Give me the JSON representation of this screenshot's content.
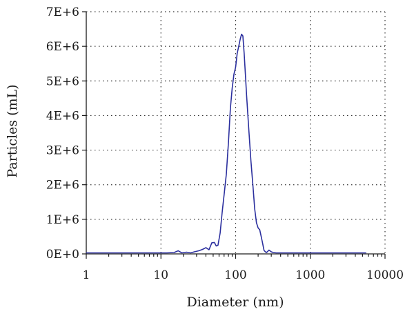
{
  "chart_data": {
    "type": "line",
    "xlabel": "Diameter (nm)",
    "ylabel": "Particles (mL)",
    "x_scale": "log",
    "xlim": [
      1,
      10000
    ],
    "ylim": [
      0,
      7000000
    ],
    "x_ticks": [
      1,
      10,
      100,
      1000,
      10000
    ],
    "x_tick_labels": [
      "1",
      "10",
      "100",
      "1000",
      "10000"
    ],
    "y_ticks": [
      0,
      1000000,
      2000000,
      3000000,
      4000000,
      5000000,
      6000000,
      7000000
    ],
    "y_tick_labels": [
      "0E+0",
      "1E+6",
      "2E+6",
      "3E+6",
      "4E+6",
      "5E+6",
      "6E+6",
      "7E+6"
    ],
    "grid": true,
    "line_color": "#2b2f9e",
    "series": [
      {
        "x": [
          1,
          2,
          3,
          5,
          8,
          10,
          12,
          15,
          17,
          19,
          22,
          25,
          28,
          32,
          36,
          40,
          44,
          48,
          52,
          55,
          58,
          62,
          66,
          70,
          75,
          80,
          85,
          90,
          95,
          100,
          105,
          110,
          115,
          120,
          125,
          130,
          135,
          140,
          150,
          160,
          170,
          180,
          190,
          200,
          210,
          220,
          230,
          240,
          250,
          260,
          280,
          300,
          320,
          350,
          400,
          500,
          700,
          1000,
          2000,
          3000,
          5600
        ],
        "y": [
          30000,
          30000,
          30000,
          30000,
          30000,
          30000,
          30000,
          40000,
          90000,
          30000,
          50000,
          30000,
          60000,
          90000,
          130000,
          180000,
          120000,
          320000,
          330000,
          230000,
          250000,
          600000,
          1200000,
          1700000,
          2300000,
          3200000,
          4200000,
          4800000,
          5200000,
          5400000,
          5800000,
          6000000,
          6200000,
          6350000,
          6300000,
          5800000,
          5200000,
          4600000,
          3600000,
          2700000,
          2000000,
          1300000,
          900000,
          750000,
          700000,
          500000,
          300000,
          100000,
          60000,
          40000,
          110000,
          60000,
          40000,
          30000,
          30000,
          30000,
          30000,
          30000,
          30000,
          30000,
          30000
        ]
      }
    ]
  }
}
